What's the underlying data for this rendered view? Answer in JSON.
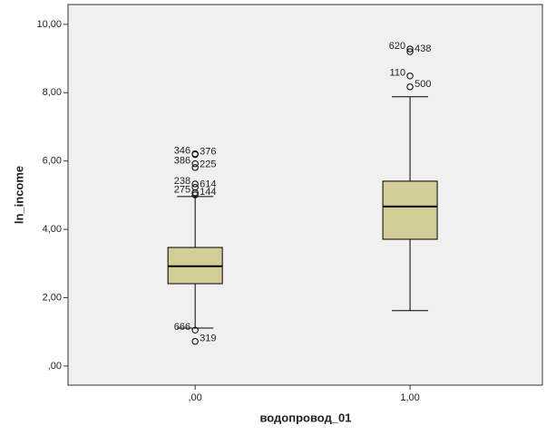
{
  "chart_data": {
    "type": "box",
    "xlabel": "водопровод_01",
    "ylabel": "ln_income",
    "categories": [
      ",00",
      "1,00"
    ],
    "color": "#d3ce97",
    "boxes": [
      {
        "whisker_low": 1.11,
        "q1": 2.41,
        "median": 2.92,
        "q3": 3.47,
        "whisker_high": 4.96,
        "outliers": [
          {
            "value": 6.21,
            "label": "346"
          },
          {
            "value": 6.19,
            "label": "376"
          },
          {
            "value": 5.92,
            "label": "386"
          },
          {
            "value": 5.81,
            "label": "225"
          },
          {
            "value": 5.33,
            "label": "238"
          },
          {
            "value": 5.23,
            "label": "614"
          },
          {
            "value": 5.07,
            "label": "275"
          },
          {
            "value": 5.01,
            "label": "144"
          },
          {
            "value": 1.05,
            "label": "666"
          },
          {
            "value": 0.72,
            "label": "319"
          }
        ]
      },
      {
        "whisker_low": 1.62,
        "q1": 3.71,
        "median": 4.67,
        "q3": 5.41,
        "whisker_high": 7.88,
        "outliers": [
          {
            "value": 9.28,
            "label": "620"
          },
          {
            "value": 9.2,
            "label": "438"
          },
          {
            "value": 8.49,
            "label": "110"
          },
          {
            "value": 8.17,
            "label": "500"
          }
        ]
      }
    ],
    "ylim": [
      -0.56,
      10.58
    ],
    "yticks": [
      {
        "value": 0,
        "label": ",00"
      },
      {
        "value": 2,
        "label": "2,00"
      },
      {
        "value": 4,
        "label": "4,00"
      },
      {
        "value": 6,
        "label": "6,00"
      },
      {
        "value": 8,
        "label": "8,00"
      },
      {
        "value": 10,
        "label": "10,00"
      }
    ]
  }
}
